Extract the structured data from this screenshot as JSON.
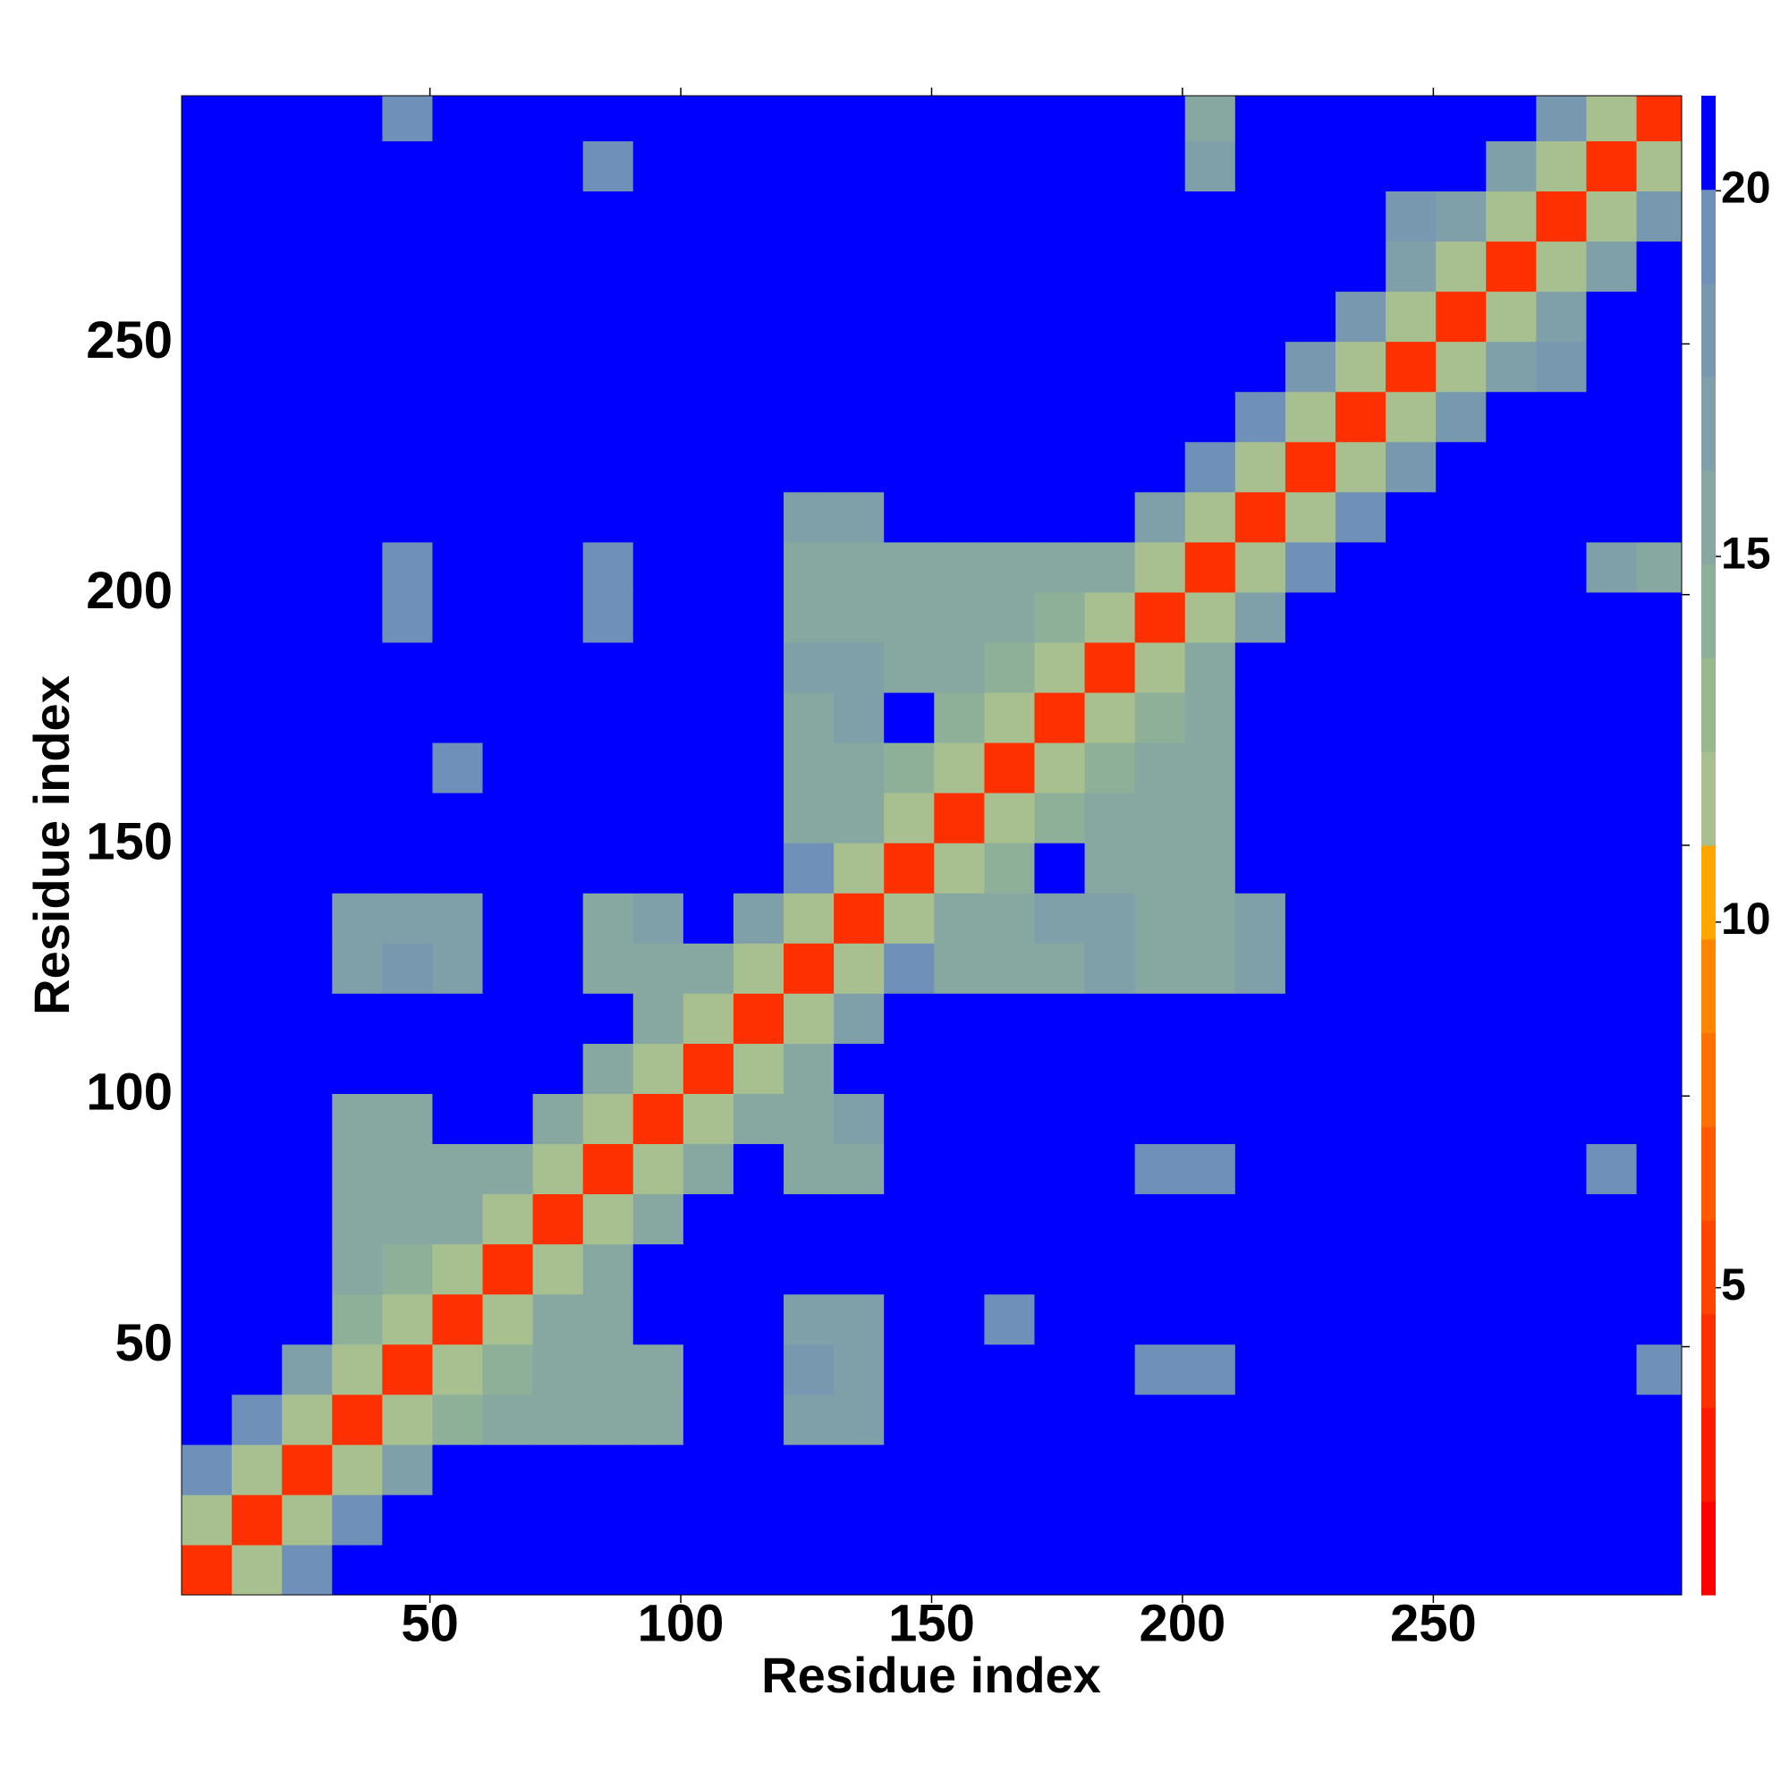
{
  "chart_data": {
    "type": "heatmap",
    "xlabel": "Residue index",
    "ylabel": "Residue index",
    "x": [
      5.5,
      15.5,
      25.5,
      35.5,
      45.5,
      55.5,
      65.5,
      75.5,
      85.5,
      95.5,
      105.5,
      115.5,
      125.5,
      135.5,
      145.5,
      155.5,
      165.5,
      175.5,
      185.5,
      195.5,
      205.5,
      215.5,
      225.5,
      235.5,
      245.5,
      255.5,
      265.5,
      275.5,
      285.5,
      295.5
    ],
    "y": [
      5.5,
      15.5,
      25.5,
      35.5,
      45.5,
      55.5,
      65.5,
      75.5,
      85.5,
      95.5,
      105.5,
      115.5,
      125.5,
      135.5,
      145.5,
      155.5,
      165.5,
      175.5,
      185.5,
      195.5,
      205.5,
      215.5,
      225.5,
      235.5,
      245.5,
      255.5,
      265.5,
      275.5,
      285.5,
      295.5
    ],
    "z": [
      [
        4,
        12,
        19,
        21,
        21,
        21,
        21,
        21,
        21,
        21,
        21,
        21,
        21,
        21,
        21,
        21,
        21,
        21,
        21,
        21,
        21,
        21,
        21,
        21,
        21,
        21,
        21,
        21,
        21,
        21
      ],
      [
        12,
        4,
        12,
        19,
        21,
        21,
        21,
        21,
        21,
        21,
        21,
        21,
        21,
        21,
        21,
        21,
        21,
        21,
        21,
        21,
        21,
        21,
        21,
        21,
        21,
        21,
        21,
        21,
        21,
        21
      ],
      [
        19,
        12,
        4,
        12,
        17,
        21,
        21,
        21,
        21,
        21,
        21,
        21,
        21,
        21,
        21,
        21,
        21,
        21,
        21,
        21,
        21,
        21,
        21,
        21,
        21,
        21,
        21,
        21,
        21,
        21
      ],
      [
        21,
        19,
        12,
        4,
        12,
        14,
        16,
        15,
        15,
        15,
        21,
        21,
        17,
        17,
        21,
        21,
        21,
        21,
        21,
        21,
        21,
        21,
        21,
        21,
        21,
        21,
        21,
        21,
        21,
        21
      ],
      [
        21,
        21,
        17,
        12,
        4,
        12,
        14,
        16,
        15,
        16,
        21,
        21,
        18,
        17,
        21,
        21,
        21,
        21,
        21,
        20,
        19,
        21,
        21,
        21,
        21,
        21,
        21,
        21,
        21,
        20
      ],
      [
        21,
        21,
        21,
        14,
        12,
        4,
        12,
        15,
        15,
        21,
        21,
        21,
        17,
        17,
        21,
        21,
        19,
        21,
        21,
        21,
        21,
        21,
        21,
        21,
        21,
        21,
        21,
        21,
        21,
        21
      ],
      [
        21,
        21,
        21,
        16,
        14,
        12,
        4,
        12,
        15,
        21,
        21,
        21,
        21,
        21,
        21,
        21,
        21,
        21,
        21,
        21,
        21,
        21,
        21,
        21,
        21,
        21,
        21,
        21,
        21,
        21
      ],
      [
        21,
        21,
        21,
        15,
        16,
        15,
        12,
        4,
        12,
        15,
        21,
        21,
        21,
        21,
        21,
        21,
        21,
        21,
        21,
        21,
        21,
        21,
        21,
        21,
        21,
        21,
        21,
        21,
        21,
        21
      ],
      [
        21,
        21,
        21,
        15,
        15,
        15,
        15,
        12,
        4,
        12,
        16,
        21,
        16,
        16,
        21,
        21,
        21,
        21,
        21,
        19,
        20,
        21,
        21,
        21,
        21,
        21,
        21,
        21,
        20,
        21
      ],
      [
        21,
        21,
        21,
        15,
        16,
        21,
        21,
        15,
        12,
        4,
        12,
        16,
        16,
        17,
        21,
        21,
        21,
        21,
        21,
        21,
        21,
        21,
        21,
        21,
        21,
        21,
        21,
        21,
        21,
        21
      ],
      [
        21,
        21,
        21,
        21,
        21,
        21,
        21,
        21,
        16,
        12,
        4,
        12,
        16,
        21,
        21,
        21,
        21,
        21,
        21,
        21,
        21,
        21,
        21,
        21,
        21,
        21,
        21,
        21,
        21,
        21
      ],
      [
        21,
        21,
        21,
        21,
        21,
        21,
        21,
        21,
        21,
        16,
        12,
        4,
        12,
        17,
        21,
        21,
        21,
        21,
        21,
        21,
        21,
        21,
        21,
        21,
        21,
        21,
        21,
        21,
        21,
        21
      ],
      [
        21,
        21,
        21,
        17,
        18,
        17,
        21,
        21,
        16,
        16,
        16,
        12,
        4,
        12,
        19,
        15,
        15,
        16,
        17,
        16,
        15,
        17,
        21,
        21,
        21,
        21,
        21,
        21,
        21,
        21
      ],
      [
        21,
        21,
        21,
        17,
        17,
        17,
        21,
        21,
        16,
        17,
        21,
        17,
        12,
        4,
        12,
        15,
        15,
        17,
        17,
        16,
        16,
        17,
        21,
        21,
        21,
        21,
        21,
        21,
        21,
        21
      ],
      [
        21,
        21,
        21,
        21,
        21,
        21,
        21,
        21,
        21,
        21,
        21,
        21,
        19,
        12,
        4,
        12,
        14,
        21,
        16,
        16,
        16,
        21,
        21,
        21,
        21,
        21,
        21,
        21,
        21,
        21
      ],
      [
        21,
        21,
        21,
        21,
        21,
        21,
        21,
        21,
        21,
        21,
        21,
        21,
        15,
        15,
        12,
        4,
        12,
        14,
        15,
        15,
        15,
        21,
        21,
        21,
        21,
        21,
        21,
        21,
        21,
        21
      ],
      [
        21,
        21,
        21,
        21,
        21,
        19,
        21,
        21,
        21,
        21,
        21,
        21,
        15,
        15,
        14,
        12,
        4,
        12,
        14,
        15,
        15,
        21,
        21,
        21,
        21,
        21,
        21,
        21,
        21,
        21
      ],
      [
        21,
        21,
        21,
        21,
        21,
        21,
        21,
        21,
        21,
        21,
        21,
        21,
        16,
        17,
        21,
        14,
        12,
        4,
        12,
        14,
        16,
        21,
        21,
        21,
        21,
        21,
        21,
        21,
        21,
        21
      ],
      [
        21,
        21,
        21,
        21,
        21,
        21,
        21,
        21,
        21,
        21,
        21,
        21,
        17,
        17,
        16,
        15,
        14,
        12,
        4,
        12,
        16,
        21,
        21,
        21,
        21,
        21,
        21,
        21,
        21,
        21
      ],
      [
        21,
        21,
        21,
        21,
        20,
        21,
        21,
        21,
        19,
        21,
        21,
        21,
        16,
        16,
        16,
        15,
        15,
        14,
        12,
        4,
        12,
        17,
        21,
        21,
        21,
        21,
        21,
        21,
        21,
        21
      ],
      [
        21,
        21,
        21,
        21,
        19,
        21,
        21,
        21,
        20,
        21,
        21,
        21,
        15,
        16,
        16,
        15,
        15,
        16,
        16,
        12,
        4,
        12,
        19,
        21,
        21,
        21,
        21,
        21,
        17,
        16
      ],
      [
        21,
        21,
        21,
        21,
        21,
        21,
        21,
        21,
        21,
        21,
        21,
        21,
        17,
        17,
        21,
        21,
        21,
        21,
        21,
        17,
        12,
        4,
        12,
        19,
        21,
        21,
        21,
        21,
        21,
        21
      ],
      [
        21,
        21,
        21,
        21,
        21,
        21,
        21,
        21,
        21,
        21,
        21,
        21,
        21,
        21,
        21,
        21,
        21,
        21,
        21,
        21,
        19,
        12,
        4,
        12,
        18,
        21,
        21,
        21,
        21,
        21
      ],
      [
        21,
        21,
        21,
        21,
        21,
        21,
        21,
        21,
        21,
        21,
        21,
        21,
        21,
        21,
        21,
        21,
        21,
        21,
        21,
        21,
        21,
        19,
        12,
        4,
        12,
        18,
        21,
        21,
        21,
        21
      ],
      [
        21,
        21,
        21,
        21,
        21,
        21,
        21,
        21,
        21,
        21,
        21,
        21,
        21,
        21,
        21,
        21,
        21,
        21,
        21,
        21,
        21,
        21,
        18,
        12,
        4,
        12,
        17,
        18,
        21,
        21
      ],
      [
        21,
        21,
        21,
        21,
        21,
        21,
        21,
        21,
        21,
        21,
        21,
        21,
        21,
        21,
        21,
        21,
        21,
        21,
        21,
        21,
        21,
        21,
        21,
        18,
        12,
        4,
        12,
        17,
        21,
        21
      ],
      [
        21,
        21,
        21,
        21,
        21,
        21,
        21,
        21,
        21,
        21,
        21,
        21,
        21,
        21,
        21,
        21,
        21,
        21,
        21,
        21,
        21,
        21,
        21,
        21,
        17,
        12,
        4,
        12,
        17,
        21
      ],
      [
        21,
        21,
        21,
        21,
        21,
        21,
        21,
        21,
        21,
        21,
        21,
        21,
        21,
        21,
        21,
        21,
        21,
        21,
        21,
        21,
        21,
        21,
        21,
        21,
        18,
        17,
        12,
        4,
        12,
        18
      ],
      [
        21,
        21,
        21,
        21,
        21,
        21,
        21,
        21,
        20,
        21,
        21,
        21,
        21,
        21,
        21,
        21,
        21,
        21,
        21,
        21,
        17,
        21,
        21,
        21,
        21,
        21,
        17,
        12,
        4,
        12
      ],
      [
        21,
        21,
        21,
        21,
        20,
        21,
        21,
        21,
        21,
        21,
        21,
        21,
        21,
        21,
        21,
        21,
        21,
        21,
        21,
        21,
        16,
        21,
        21,
        21,
        21,
        21,
        21,
        18,
        12,
        4
      ]
    ],
    "xlim": [
      0.5,
      299.5
    ],
    "ylim": [
      0.5,
      299.5
    ],
    "xticks": [
      50,
      100,
      150,
      200,
      250
    ],
    "yticks": [
      50,
      100,
      150,
      200,
      250
    ],
    "colorbar": {
      "lim": [
        0.8,
        21.3
      ],
      "ticks": [
        5,
        10,
        15,
        20
      ],
      "colors": [
        "#ff0000",
        "#ff1a00",
        "#ff3000",
        "#ff4500",
        "#ff5a00",
        "#ff7000",
        "#ff8500",
        "#ffa500",
        "#a8c090",
        "#98b890",
        "#8eb098",
        "#86a8a0",
        "#7fa0a8",
        "#7898b0",
        "#6f90b8",
        "#0000ff"
      ]
    }
  }
}
